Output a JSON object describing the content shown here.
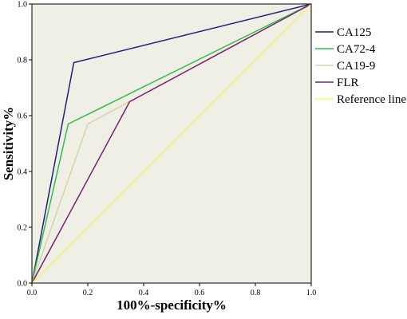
{
  "chart_data": {
    "type": "line",
    "title": "",
    "xlabel": "100%-specificity%",
    "ylabel": "Sensitivity%",
    "xlim": [
      0,
      1
    ],
    "ylim": [
      0,
      1
    ],
    "x_ticks": [
      "0.0",
      "0.2",
      "0.4",
      "0.6",
      "0.8",
      "1.0"
    ],
    "y_ticks": [
      "0.0",
      "0.2",
      "0.4",
      "0.6",
      "0.8",
      "1.0"
    ],
    "grid": false,
    "background_color": "#f0efe6",
    "legend_position": "right",
    "series": [
      {
        "name": "CA125",
        "color": "#1f1f78",
        "points": [
          [
            0,
            0
          ],
          [
            0.15,
            0.79
          ],
          [
            1,
            1
          ]
        ]
      },
      {
        "name": "CA72-4",
        "color": "#2dbf46",
        "points": [
          [
            0,
            0
          ],
          [
            0.13,
            0.57
          ],
          [
            1,
            1
          ]
        ]
      },
      {
        "name": "CA19-9",
        "color": "#d8d2a8",
        "points": [
          [
            0,
            0
          ],
          [
            0.2,
            0.57
          ],
          [
            1,
            1
          ]
        ]
      },
      {
        "name": "FLR",
        "color": "#7a1f6e",
        "points": [
          [
            0,
            0
          ],
          [
            0.35,
            0.65
          ],
          [
            1,
            1
          ]
        ]
      },
      {
        "name": "Reference line",
        "color": "#f5f56a",
        "points": [
          [
            0,
            0
          ],
          [
            1,
            1
          ]
        ]
      }
    ]
  }
}
